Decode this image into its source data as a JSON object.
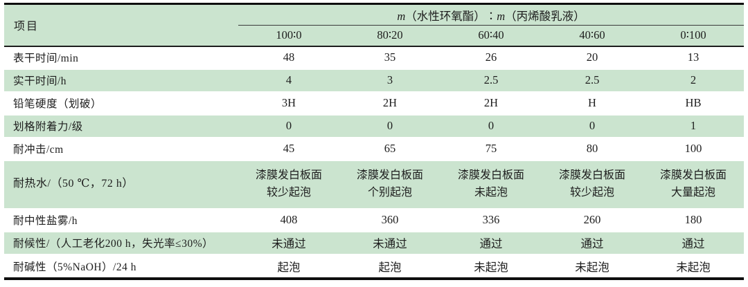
{
  "table": {
    "corner_label": "项目",
    "group": {
      "m1": "m",
      "seg1": "（水性环氧酯）∶",
      "m2": "m",
      "seg2": "（丙烯酸乳液）"
    },
    "ratio_columns": [
      "100∶0",
      "80∶20",
      "60∶40",
      "40∶60",
      "0∶100"
    ],
    "rows": [
      {
        "label": "表干时间/min",
        "values": [
          "48",
          "35",
          "26",
          "20",
          "13"
        ]
      },
      {
        "label": "实干时间/h",
        "values": [
          "4",
          "3",
          "2.5",
          "2.5",
          "2"
        ]
      },
      {
        "label": "铅笔硬度（划破）",
        "values": [
          "3H",
          "2H",
          "2H",
          "H",
          "HB"
        ]
      },
      {
        "label": "划格附着力/级",
        "values": [
          "0",
          "0",
          "0",
          "0",
          "1"
        ]
      },
      {
        "label": "耐冲击/cm",
        "values": [
          "45",
          "65",
          "75",
          "80",
          "100"
        ]
      },
      {
        "label": "耐热水/（50 ℃，72 h）",
        "values": [
          "漆膜发白板面\n较少起泡",
          "漆膜发白板面\n个别起泡",
          "漆膜发白板面\n未起泡",
          "漆膜发白板面\n较少起泡",
          "漆膜发白板面\n大量起泡"
        ]
      },
      {
        "label": "耐中性盐雾/h",
        "values": [
          "408",
          "360",
          "336",
          "260",
          "180"
        ]
      },
      {
        "label": "耐候性/（人工老化200 h，失光率≤30%）",
        "values": [
          "未通过",
          "未通过",
          "通过",
          "通过",
          "通过"
        ]
      },
      {
        "label": "耐碱性（5%NaOH）/24 h",
        "values": [
          "起泡",
          "起泡",
          "未起泡",
          "未起泡",
          "未起泡"
        ]
      }
    ],
    "colors": {
      "row_green": "#cbe4cf",
      "text": "#1d1d1d",
      "rule": "#0e0e0e"
    }
  }
}
